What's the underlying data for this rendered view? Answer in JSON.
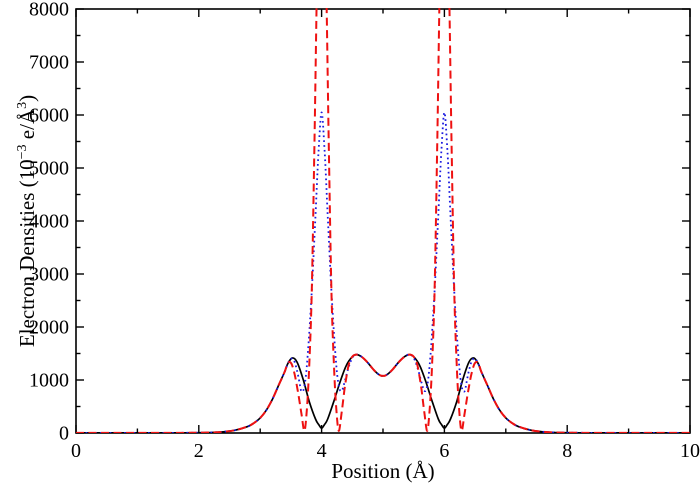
{
  "chart_data": {
    "type": "line",
    "title": "",
    "xlabel": "Position (Å)",
    "ylabel": "Electron Densities (10⁻³ e/Å³)",
    "ylabel_parts": [
      {
        "t": "Electron Densities (10"
      },
      {
        "t": "−3",
        "sup": true
      },
      {
        "t": " e/Å"
      },
      {
        "t": "3",
        "sup": true
      },
      {
        "t": ")"
      }
    ],
    "xlim": [
      0,
      10
    ],
    "ylim": [
      0,
      8000
    ],
    "grid": false,
    "legend": "none",
    "frame_color": "#000000",
    "x_major_ticks": [
      0,
      2,
      4,
      6,
      8,
      10
    ],
    "x_major_tick_labels": [
      "0",
      "2",
      "4",
      "6",
      "8",
      "10"
    ],
    "x_minor_ticks": [
      1,
      3,
      5,
      7,
      9
    ],
    "y_major_ticks": [
      0,
      1000,
      2000,
      3000,
      4000,
      5000,
      6000,
      7000,
      8000
    ],
    "y_major_tick_labels": [
      "0",
      "1000",
      "2000",
      "3000",
      "4000",
      "5000",
      "6000",
      "7000",
      "8000"
    ],
    "y_minor_ticks": [
      500,
      1500,
      2500,
      3500,
      4500,
      5500,
      6500,
      7500
    ],
    "series": [
      {
        "name": "solid-black-curve",
        "color": "#000000",
        "style": "solid",
        "points": [
          [
            0,
            2
          ],
          [
            1,
            2
          ],
          [
            1.8,
            3
          ],
          [
            2,
            5
          ],
          [
            2.2,
            10
          ],
          [
            2.4,
            22
          ],
          [
            2.6,
            55
          ],
          [
            2.8,
            125
          ],
          [
            2.9,
            190
          ],
          [
            3,
            285
          ],
          [
            3.1,
            430
          ],
          [
            3.2,
            640
          ],
          [
            3.3,
            900
          ],
          [
            3.4,
            1160
          ],
          [
            3.45,
            1310
          ],
          [
            3.52,
            1415
          ],
          [
            3.6,
            1340
          ],
          [
            3.7,
            1010
          ],
          [
            3.8,
            590
          ],
          [
            3.9,
            265
          ],
          [
            3.95,
            165
          ],
          [
            4,
            90
          ],
          [
            4.05,
            165
          ],
          [
            4.1,
            265
          ],
          [
            4.2,
            600
          ],
          [
            4.3,
            960
          ],
          [
            4.4,
            1270
          ],
          [
            4.5,
            1440
          ],
          [
            4.57,
            1480
          ],
          [
            4.65,
            1440
          ],
          [
            4.75,
            1330
          ],
          [
            4.85,
            1190
          ],
          [
            4.95,
            1090
          ],
          [
            5,
            1080
          ],
          [
            5.05,
            1090
          ],
          [
            5.15,
            1190
          ],
          [
            5.25,
            1330
          ],
          [
            5.35,
            1440
          ],
          [
            5.43,
            1480
          ],
          [
            5.5,
            1440
          ],
          [
            5.6,
            1270
          ],
          [
            5.7,
            960
          ],
          [
            5.8,
            600
          ],
          [
            5.9,
            265
          ],
          [
            5.95,
            165
          ],
          [
            6,
            90
          ],
          [
            6.05,
            165
          ],
          [
            6.1,
            265
          ],
          [
            6.2,
            590
          ],
          [
            6.3,
            1010
          ],
          [
            6.4,
            1340
          ],
          [
            6.48,
            1415
          ],
          [
            6.55,
            1310
          ],
          [
            6.6,
            1160
          ],
          [
            6.7,
            900
          ],
          [
            6.8,
            640
          ],
          [
            6.9,
            430
          ],
          [
            7,
            285
          ],
          [
            7.1,
            190
          ],
          [
            7.2,
            125
          ],
          [
            7.4,
            55
          ],
          [
            7.6,
            22
          ],
          [
            7.8,
            10
          ],
          [
            8,
            5
          ],
          [
            8.2,
            3
          ],
          [
            9,
            2
          ],
          [
            10,
            2
          ]
        ]
      },
      {
        "name": "dotted-blue-curve",
        "color": "#1a1adf",
        "style": "dotted",
        "points": [
          [
            0,
            2
          ],
          [
            1,
            2
          ],
          [
            1.8,
            3
          ],
          [
            2,
            5
          ],
          [
            2.2,
            10
          ],
          [
            2.4,
            22
          ],
          [
            2.6,
            55
          ],
          [
            2.8,
            125
          ],
          [
            2.9,
            190
          ],
          [
            3,
            285
          ],
          [
            3.1,
            430
          ],
          [
            3.2,
            640
          ],
          [
            3.3,
            900
          ],
          [
            3.4,
            1160
          ],
          [
            3.45,
            1310
          ],
          [
            3.5,
            1400
          ],
          [
            3.55,
            1370
          ],
          [
            3.6,
            1180
          ],
          [
            3.64,
            950
          ],
          [
            3.67,
            790
          ],
          [
            3.71,
            830
          ],
          [
            3.75,
            1150
          ],
          [
            3.8,
            1900
          ],
          [
            3.85,
            2900
          ],
          [
            3.9,
            4100
          ],
          [
            3.95,
            5300
          ],
          [
            4,
            6050
          ],
          [
            4.05,
            5300
          ],
          [
            4.1,
            4100
          ],
          [
            4.15,
            2900
          ],
          [
            4.2,
            1900
          ],
          [
            4.25,
            1150
          ],
          [
            4.29,
            840
          ],
          [
            4.33,
            800
          ],
          [
            4.37,
            940
          ],
          [
            4.43,
            1200
          ],
          [
            4.5,
            1420
          ],
          [
            4.57,
            1480
          ],
          [
            4.65,
            1440
          ],
          [
            4.75,
            1330
          ],
          [
            4.85,
            1190
          ],
          [
            4.95,
            1090
          ],
          [
            5,
            1080
          ],
          [
            5.05,
            1090
          ],
          [
            5.15,
            1190
          ],
          [
            5.25,
            1330
          ],
          [
            5.35,
            1440
          ],
          [
            5.43,
            1480
          ],
          [
            5.5,
            1420
          ],
          [
            5.57,
            1200
          ],
          [
            5.63,
            940
          ],
          [
            5.67,
            800
          ],
          [
            5.71,
            840
          ],
          [
            5.75,
            1150
          ],
          [
            5.8,
            1900
          ],
          [
            5.85,
            2900
          ],
          [
            5.9,
            4100
          ],
          [
            5.95,
            5300
          ],
          [
            6,
            6050
          ],
          [
            6.05,
            5300
          ],
          [
            6.1,
            4100
          ],
          [
            6.15,
            2900
          ],
          [
            6.2,
            1900
          ],
          [
            6.25,
            1150
          ],
          [
            6.29,
            830
          ],
          [
            6.33,
            790
          ],
          [
            6.36,
            950
          ],
          [
            6.4,
            1180
          ],
          [
            6.45,
            1370
          ],
          [
            6.5,
            1400
          ],
          [
            6.55,
            1310
          ],
          [
            6.6,
            1160
          ],
          [
            6.7,
            900
          ],
          [
            6.8,
            640
          ],
          [
            6.9,
            430
          ],
          [
            7,
            285
          ],
          [
            7.1,
            190
          ],
          [
            7.2,
            125
          ],
          [
            7.4,
            55
          ],
          [
            7.6,
            22
          ],
          [
            7.8,
            10
          ],
          [
            8,
            5
          ],
          [
            8.2,
            3
          ],
          [
            9,
            2
          ],
          [
            10,
            2
          ]
        ]
      },
      {
        "name": "dashed-red-curve",
        "color": "#ee1111",
        "style": "dashed",
        "points": [
          [
            0,
            2
          ],
          [
            1,
            2
          ],
          [
            1.8,
            3
          ],
          [
            2,
            5
          ],
          [
            2.2,
            10
          ],
          [
            2.4,
            22
          ],
          [
            2.6,
            55
          ],
          [
            2.8,
            125
          ],
          [
            2.9,
            190
          ],
          [
            3,
            285
          ],
          [
            3.1,
            430
          ],
          [
            3.2,
            640
          ],
          [
            3.3,
            900
          ],
          [
            3.4,
            1160
          ],
          [
            3.44,
            1300
          ],
          [
            3.48,
            1340
          ],
          [
            3.52,
            1280
          ],
          [
            3.57,
            1060
          ],
          [
            3.62,
            740
          ],
          [
            3.67,
            380
          ],
          [
            3.72,
            40
          ],
          [
            3.76,
            450
          ],
          [
            3.8,
            1300
          ],
          [
            3.84,
            2700
          ],
          [
            3.88,
            5200
          ],
          [
            3.92,
            8200
          ],
          [
            3.96,
            10500
          ],
          [
            4,
            11500
          ],
          [
            4.04,
            10500
          ],
          [
            4.08,
            8200
          ],
          [
            4.12,
            5200
          ],
          [
            4.16,
            2700
          ],
          [
            4.2,
            1300
          ],
          [
            4.24,
            450
          ],
          [
            4.28,
            40
          ],
          [
            4.33,
            420
          ],
          [
            4.38,
            880
          ],
          [
            4.44,
            1280
          ],
          [
            4.5,
            1440
          ],
          [
            4.57,
            1480
          ],
          [
            4.65,
            1440
          ],
          [
            4.75,
            1330
          ],
          [
            4.85,
            1190
          ],
          [
            4.95,
            1090
          ],
          [
            5,
            1080
          ],
          [
            5.05,
            1090
          ],
          [
            5.15,
            1190
          ],
          [
            5.25,
            1330
          ],
          [
            5.35,
            1440
          ],
          [
            5.43,
            1480
          ],
          [
            5.5,
            1440
          ],
          [
            5.56,
            1280
          ],
          [
            5.62,
            880
          ],
          [
            5.67,
            420
          ],
          [
            5.72,
            40
          ],
          [
            5.76,
            450
          ],
          [
            5.8,
            1300
          ],
          [
            5.84,
            2700
          ],
          [
            5.88,
            5200
          ],
          [
            5.92,
            8200
          ],
          [
            5.96,
            10500
          ],
          [
            6,
            11500
          ],
          [
            6.04,
            10500
          ],
          [
            6.08,
            8200
          ],
          [
            6.12,
            5200
          ],
          [
            6.16,
            2700
          ],
          [
            6.2,
            1300
          ],
          [
            6.24,
            450
          ],
          [
            6.28,
            40
          ],
          [
            6.33,
            380
          ],
          [
            6.38,
            740
          ],
          [
            6.43,
            1060
          ],
          [
            6.48,
            1280
          ],
          [
            6.52,
            1340
          ],
          [
            6.56,
            1300
          ],
          [
            6.6,
            1160
          ],
          [
            6.7,
            900
          ],
          [
            6.8,
            640
          ],
          [
            6.9,
            430
          ],
          [
            7,
            285
          ],
          [
            7.1,
            190
          ],
          [
            7.2,
            125
          ],
          [
            7.4,
            55
          ],
          [
            7.6,
            22
          ],
          [
            7.8,
            10
          ],
          [
            8,
            5
          ],
          [
            8.2,
            3
          ],
          [
            9,
            2
          ],
          [
            10,
            2
          ]
        ]
      }
    ]
  }
}
